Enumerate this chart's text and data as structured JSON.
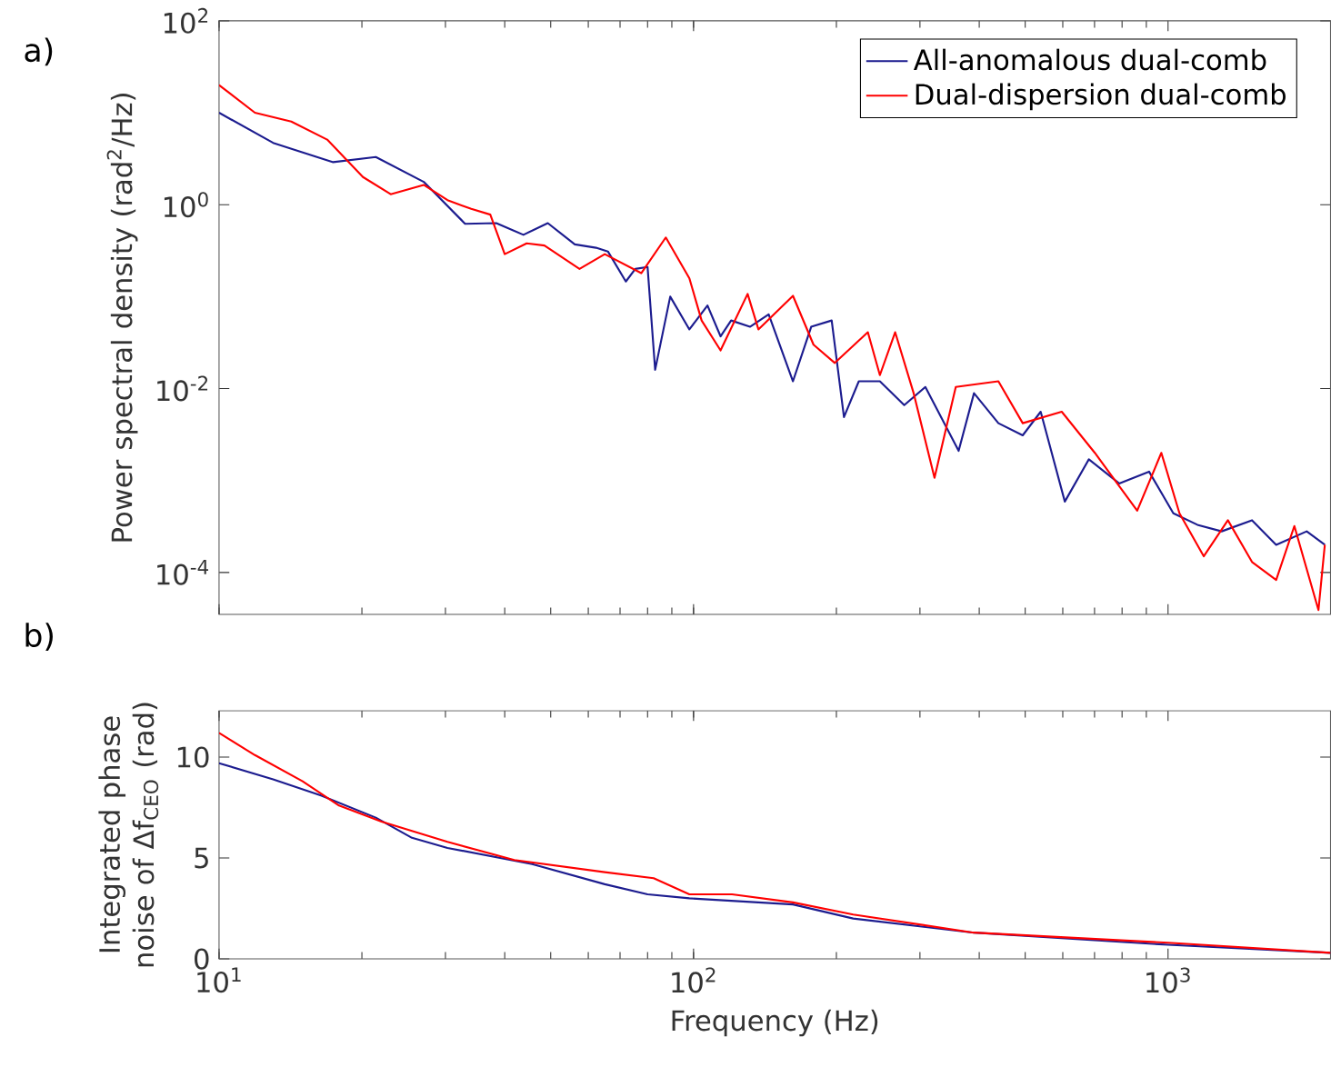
{
  "chart_data": [
    {
      "type": "line",
      "ylabel": "Power spectral density (rad$^{2}$/Hz)",
      "annotations": [
        "a)"
      ],
      "log": "xy",
      "legend": "top right",
      "tick_labels": "y",
      "xlim": [
        10,
        2200
      ],
      "ylim": [
        3.5e-05,
        100
      ],
      "xticks": [
        {
          "value": 10,
          "label": null
        },
        {
          "value": 100,
          "label": null
        },
        {
          "value": 1000,
          "label": null
        }
      ],
      "yticks": [
        {
          "value": 0.0001,
          "label": "10$^{-4}$"
        },
        {
          "value": 0.01,
          "label": "10$^{-2}$"
        },
        {
          "value": 1,
          "label": "10$^{0}$"
        },
        {
          "value": 100,
          "label": "10$^{2}$"
        }
      ],
      "series": [
        {
          "name": "All-anomalous dual-comb",
          "color": "#1c1c8f",
          "x": [
            10,
            13,
            17.4,
            21.4,
            27,
            33,
            38.4,
            43.8,
            49.3,
            56.2,
            62.3,
            66,
            72,
            75.4,
            80,
            83,
            89.3,
            98,
            107,
            114,
            120,
            131.5,
            144,
            162,
            177,
            195.5,
            207.5,
            223,
            247,
            278,
            308,
            362,
            390,
            439,
            494,
            539,
            606,
            681,
            789,
            912,
            1026,
            1153,
            1297,
            1503,
            1690,
            1960,
            2140
          ],
          "values": [
            10,
            4.7,
            2.9,
            3.3,
            1.77,
            0.62,
            0.63,
            0.47,
            0.63,
            0.37,
            0.34,
            0.31,
            0.146,
            0.2,
            0.21,
            0.016,
            0.1,
            0.044,
            0.08,
            0.037,
            0.055,
            0.047,
            0.064,
            0.012,
            0.047,
            0.055,
            0.0049,
            0.012,
            0.012,
            0.0066,
            0.0104,
            0.0021,
            0.0089,
            0.0042,
            0.0031,
            0.0056,
            0.00059,
            0.0017,
            0.00093,
            0.00125,
            0.00044,
            0.00033,
            0.00028,
            0.00037,
            0.0002,
            0.00028,
            0.0002
          ]
        },
        {
          "name": "Dual-dispersion dual-comb",
          "color": "#ff0000",
          "x": [
            10,
            11.9,
            14.2,
            16.9,
            20.1,
            23,
            27,
            30.3,
            34,
            37.3,
            40,
            44.5,
            48.5,
            57.5,
            65,
            77.6,
            87.4,
            98,
            104,
            114,
            130,
            137,
            162,
            179,
            198.5,
            233,
            247,
            266,
            291,
            322,
            357,
            439,
            494,
            597,
            701,
            861,
            968,
            1057,
            1189,
            1337,
            1503,
            1690,
            1846,
            2075,
            2140
          ],
          "values": [
            20,
            10,
            8,
            5.1,
            2.0,
            1.3,
            1.64,
            1.12,
            0.9,
            0.78,
            0.29,
            0.38,
            0.36,
            0.2,
            0.29,
            0.18,
            0.44,
            0.158,
            0.055,
            0.026,
            0.107,
            0.044,
            0.102,
            0.03,
            0.019,
            0.041,
            0.014,
            0.041,
            0.0089,
            0.00107,
            0.0104,
            0.012,
            0.0042,
            0.0056,
            0.002,
            0.00047,
            0.002,
            0.00044,
            0.00015,
            0.00037,
            0.00013,
            8.3e-05,
            0.00032,
            3.9e-05,
            0.0002
          ]
        }
      ]
    },
    {
      "type": "line",
      "xlabel": "Frequency (Hz)",
      "ylabel": "Integrated phase noise of Δf$_{CEO}$ (rad)",
      "annotations": [
        "b)"
      ],
      "log": "x",
      "xlim": [
        10,
        2200
      ],
      "ylim": [
        0,
        12.3
      ],
      "xticks": [
        {
          "value": 10,
          "label": "10$^{1}$"
        },
        {
          "value": 100,
          "label": "10$^{2}$"
        },
        {
          "value": 1000,
          "label": "10$^{3}$"
        }
      ],
      "yticks": [
        0,
        5,
        10
      ],
      "series": [
        {
          "color": "#1c1c8f",
          "x": [
            10,
            13,
            16.4,
            21.4,
            25.5,
            30.3,
            45.7,
            65,
            80,
            98,
            162,
            217,
            390,
            1000,
            2200
          ],
          "values": [
            9.7,
            8.9,
            8.1,
            7.0,
            6.0,
            5.5,
            4.7,
            3.7,
            3.2,
            3.0,
            2.7,
            2.0,
            1.3,
            0.7,
            0.3
          ]
        },
        {
          "color": "#ff0000",
          "x": [
            10,
            11.9,
            15,
            17.9,
            22,
            30.3,
            41.9,
            65,
            82.4,
            98,
            120.5,
            162,
            217,
            390,
            1000,
            2200
          ],
          "values": [
            11.2,
            10.1,
            8.8,
            7.6,
            6.8,
            5.8,
            4.9,
            4.3,
            4.0,
            3.2,
            3.2,
            2.8,
            2.2,
            1.3,
            0.8,
            0.3
          ]
        }
      ]
    }
  ]
}
